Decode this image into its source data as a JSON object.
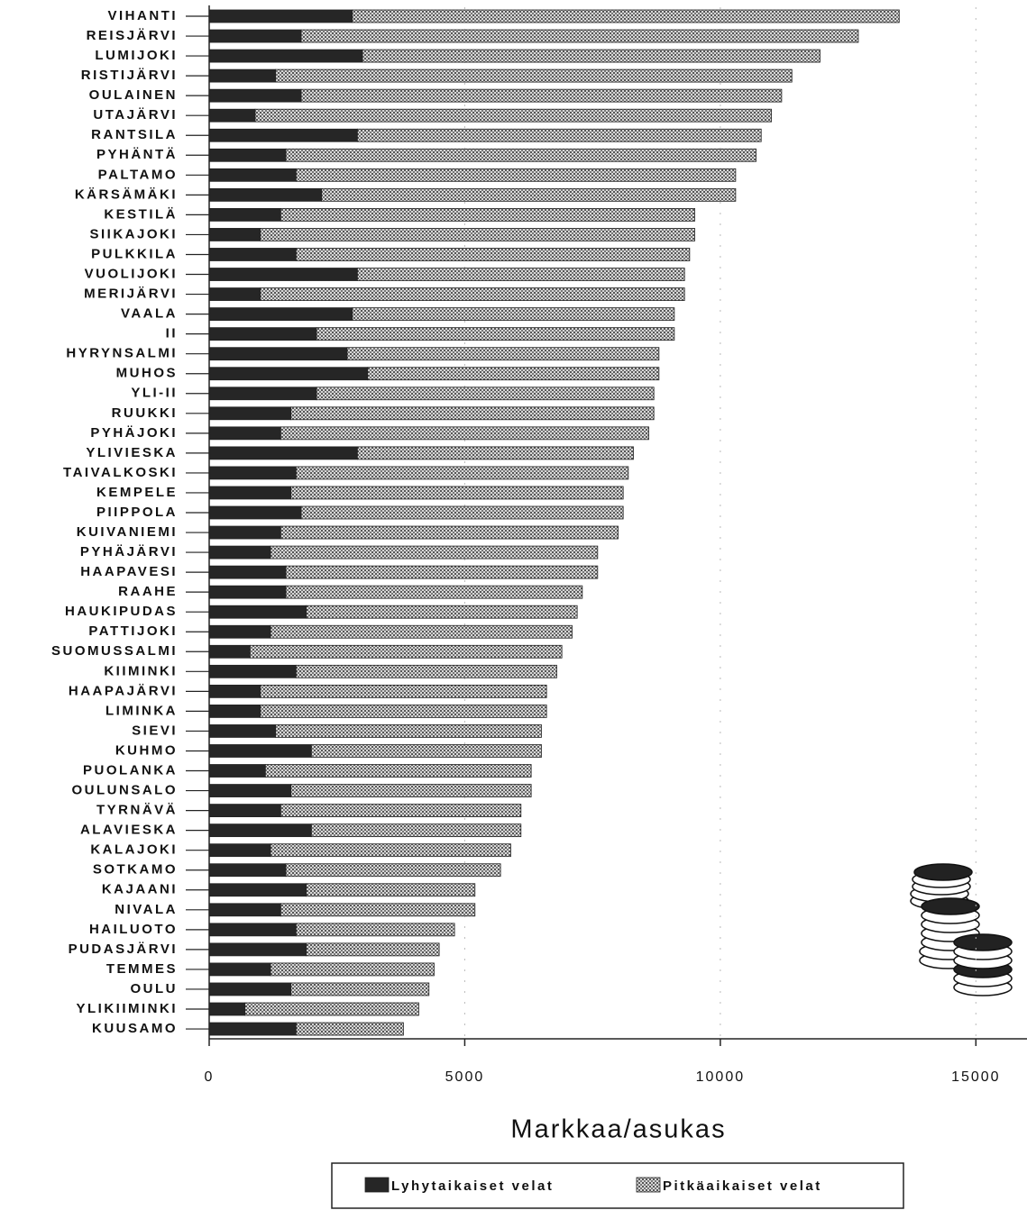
{
  "chart_data": {
    "type": "stacked-barh",
    "xlabel": "Markkaa/asukas",
    "categories": [
      "VIHANTI",
      "REISJÄRVI",
      "LUMIJOKI",
      "RISTIJÄRVI",
      "OULAINEN",
      "UTAJÄRVI",
      "RANTSILA",
      "PYHÄNTÄ",
      "PALTAMO",
      "KÄRSÄMÄKI",
      "KESTILÄ",
      "SIIKAJOKI",
      "PULKKILA",
      "VUOLIJOKI",
      "MERIJÄRVI",
      "VAALA",
      "II",
      "HYRYNSALMI",
      "MUHOS",
      "YLI-II",
      "RUUKKI",
      "PYHÄJOKI",
      "YLIVIESKA",
      "TAIVALKOSKI",
      "KEMPELE",
      "PIIPPOLA",
      "KUIVANIEMI",
      "PYHÄJÄRVI",
      "HAAPAVESI",
      "RAAHE",
      "HAUKIPUDAS",
      "PATTIJOKI",
      "SUOMUSSALMI",
      "KIIMINKI",
      "HAAPAJÄRVI",
      "LIMINKA",
      "SIEVI",
      "KUHMO",
      "PUOLANKA",
      "OULUNSALO",
      "TYRNÄVÄ",
      "ALAVIESKA",
      "KALAJOKI",
      "SOTKAMO",
      "KAJAANI",
      "NIVALA",
      "HAILUOTO",
      "PUDASJÄRVI",
      "TEMMES",
      "OULU",
      "YLIKIIMINKI",
      "KUUSAMO"
    ],
    "series": [
      {
        "name": "Lyhytaikaiset velat",
        "color": "#262626",
        "values": [
          2800,
          1800,
          3000,
          1300,
          1800,
          900,
          2900,
          1500,
          1700,
          2200,
          1400,
          1000,
          1700,
          2900,
          1000,
          2800,
          2100,
          2700,
          3100,
          2100,
          1600,
          1400,
          2900,
          1700,
          1600,
          1800,
          1400,
          1200,
          1500,
          1500,
          1900,
          1200,
          800,
          1700,
          1000,
          1000,
          1300,
          2000,
          1100,
          1600,
          1400,
          2000,
          1200,
          1500,
          1900,
          1400,
          1700,
          1900,
          1200,
          1600,
          700,
          1700
        ]
      },
      {
        "name": "Pitkäaikaiset velat",
        "color": "#a9a9a9",
        "values": [
          10700,
          10900,
          8950,
          10100,
          9400,
          10100,
          7900,
          9200,
          8600,
          8100,
          8100,
          8500,
          7700,
          6400,
          8300,
          6300,
          7000,
          6100,
          5700,
          6600,
          7100,
          7200,
          5400,
          6500,
          6500,
          6300,
          6600,
          6400,
          6100,
          5800,
          5300,
          5900,
          6100,
          5100,
          5600,
          5600,
          5200,
          4500,
          5200,
          4700,
          4700,
          4100,
          4700,
          4200,
          3300,
          3800,
          3100,
          2600,
          3200,
          2700,
          3400,
          2100
        ]
      }
    ],
    "xlim": [
      0,
      16000
    ],
    "xticks": [
      0,
      5000,
      10000,
      15000
    ],
    "grid": true
  }
}
